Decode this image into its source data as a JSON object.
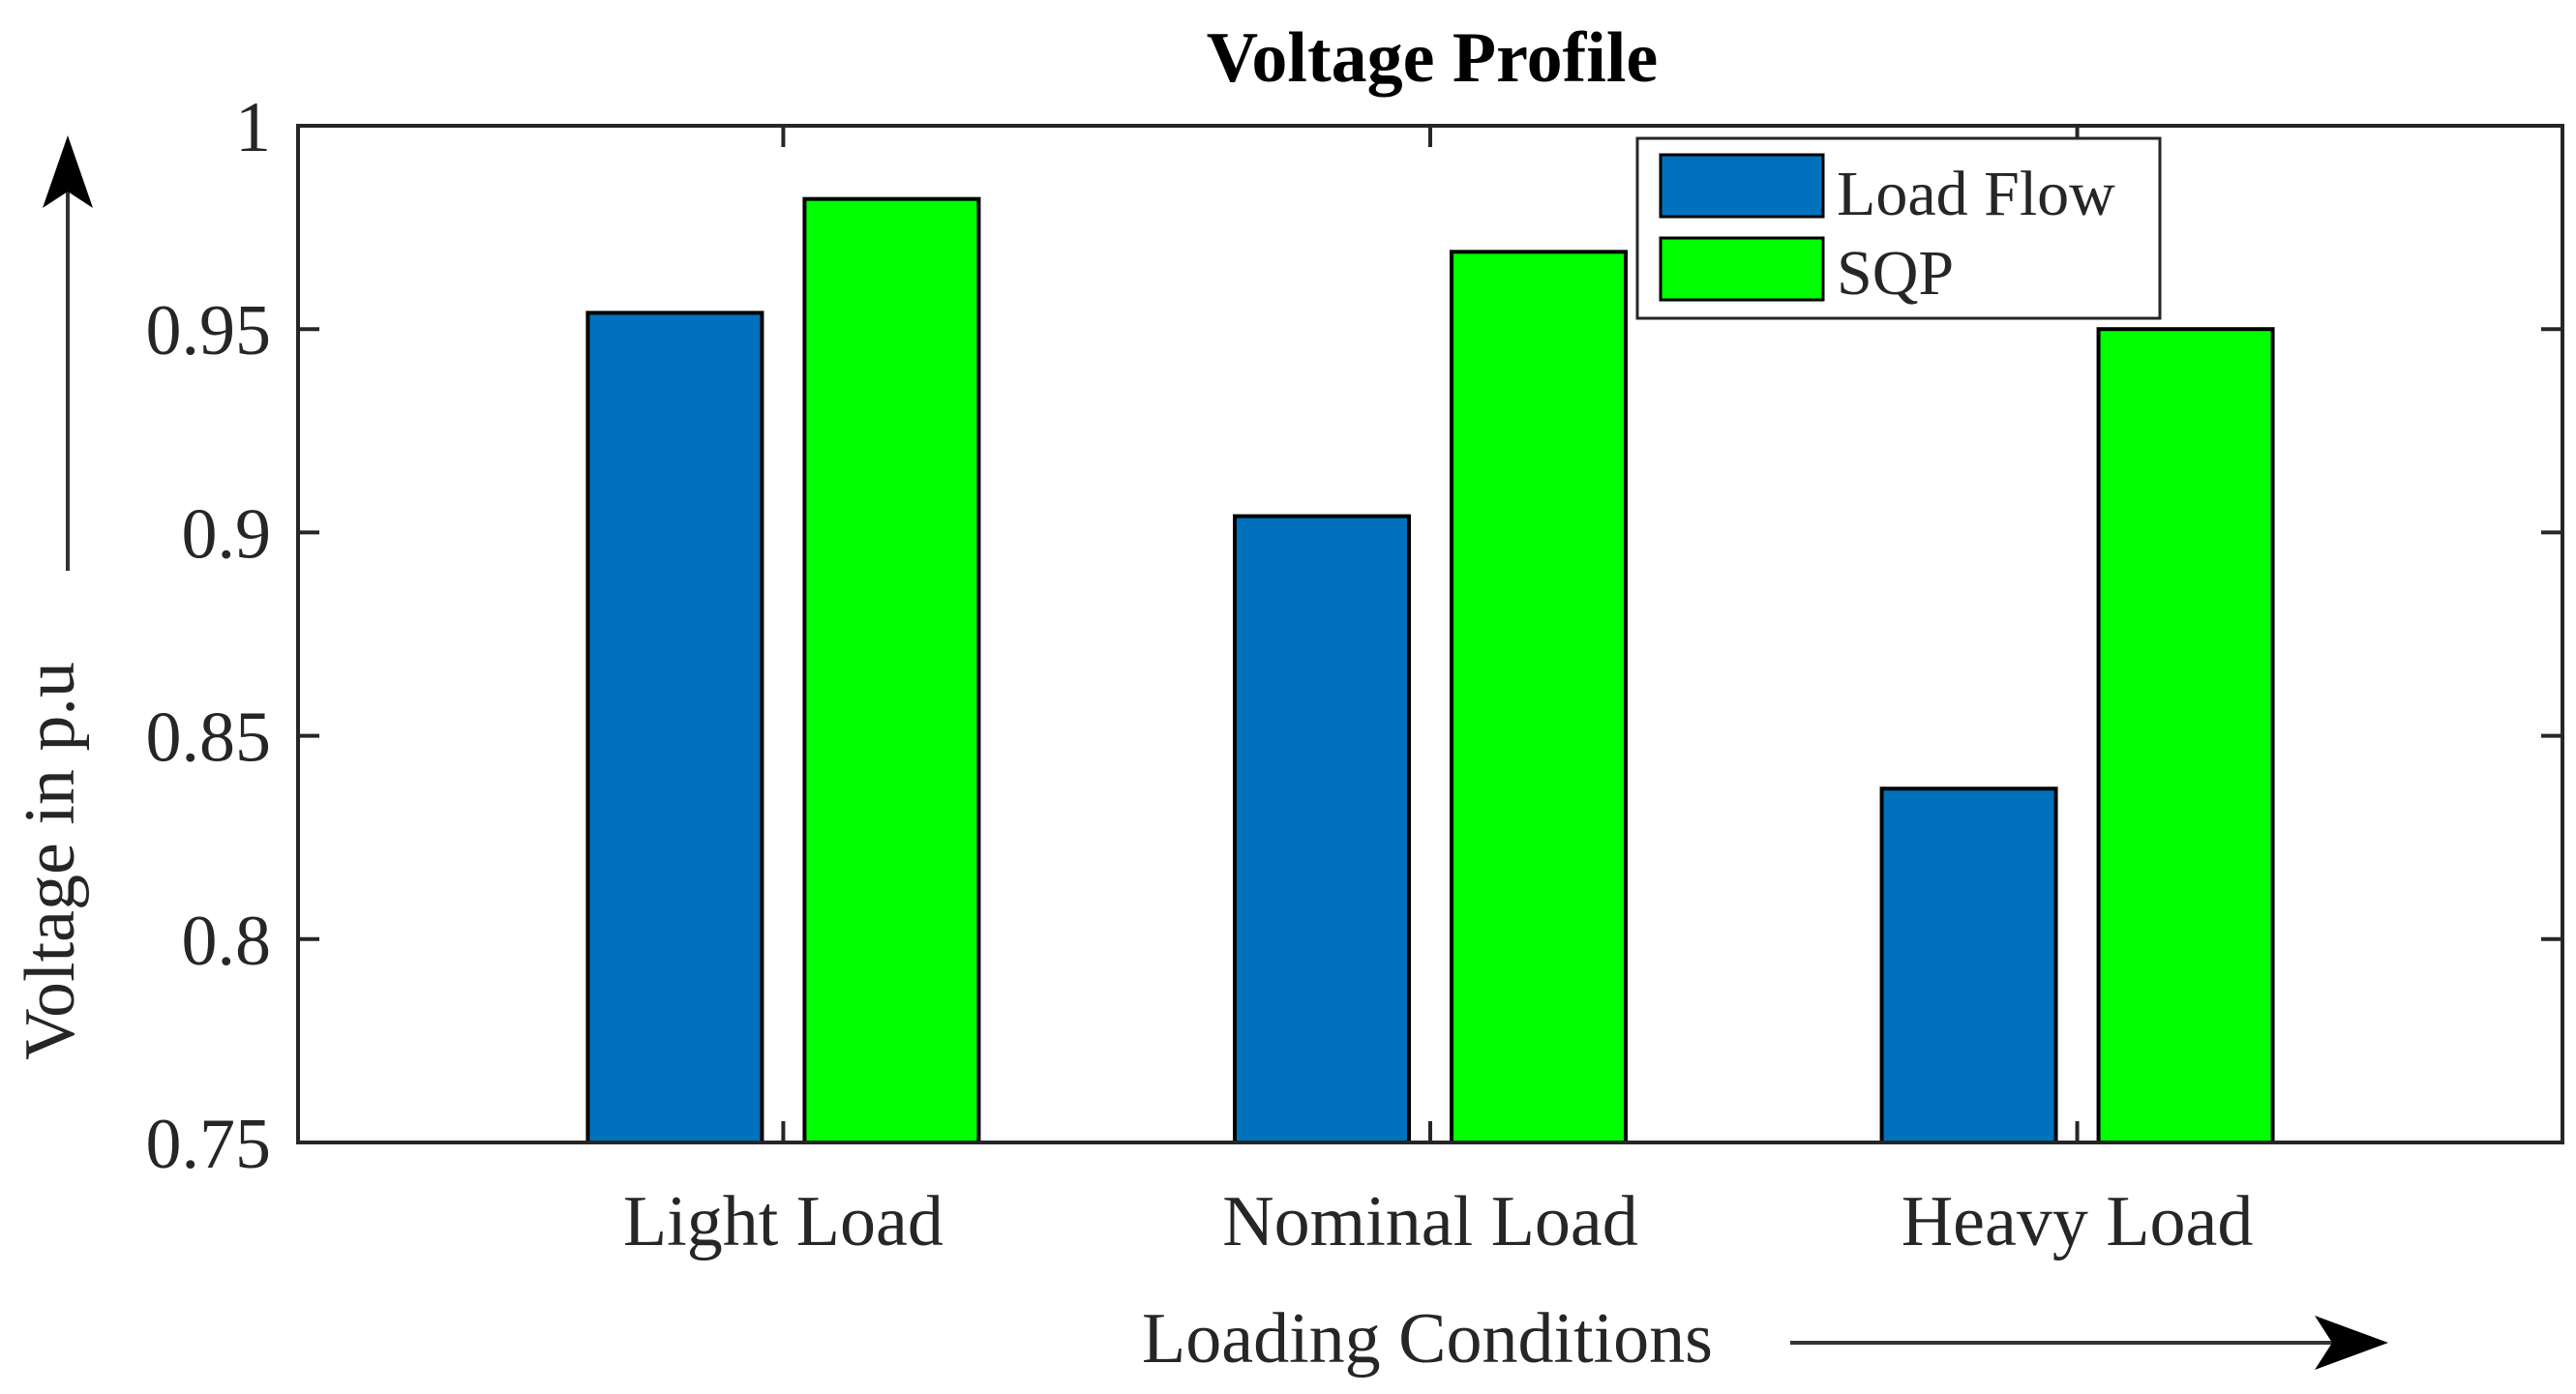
{
  "chart_data": {
    "type": "bar",
    "title": "Voltage Profile",
    "xlabel": "Loading Conditions",
    "ylabel": "Voltage in p.u",
    "categories": [
      "Light Load",
      "Nominal Load",
      "Heavy Load"
    ],
    "series": [
      {
        "name": "Load Flow",
        "color": "#0072BD",
        "values": [
          0.954,
          0.904,
          0.837
        ]
      },
      {
        "name": "SQP",
        "color": "#00FF00",
        "values": [
          0.982,
          0.969,
          0.95
        ]
      }
    ],
    "ylim": [
      0.75,
      1.0
    ],
    "yticks": [
      "0.75",
      "0.8",
      "0.85",
      "0.9",
      "0.95",
      "1"
    ],
    "grid": false,
    "legend_position": "top-right"
  }
}
